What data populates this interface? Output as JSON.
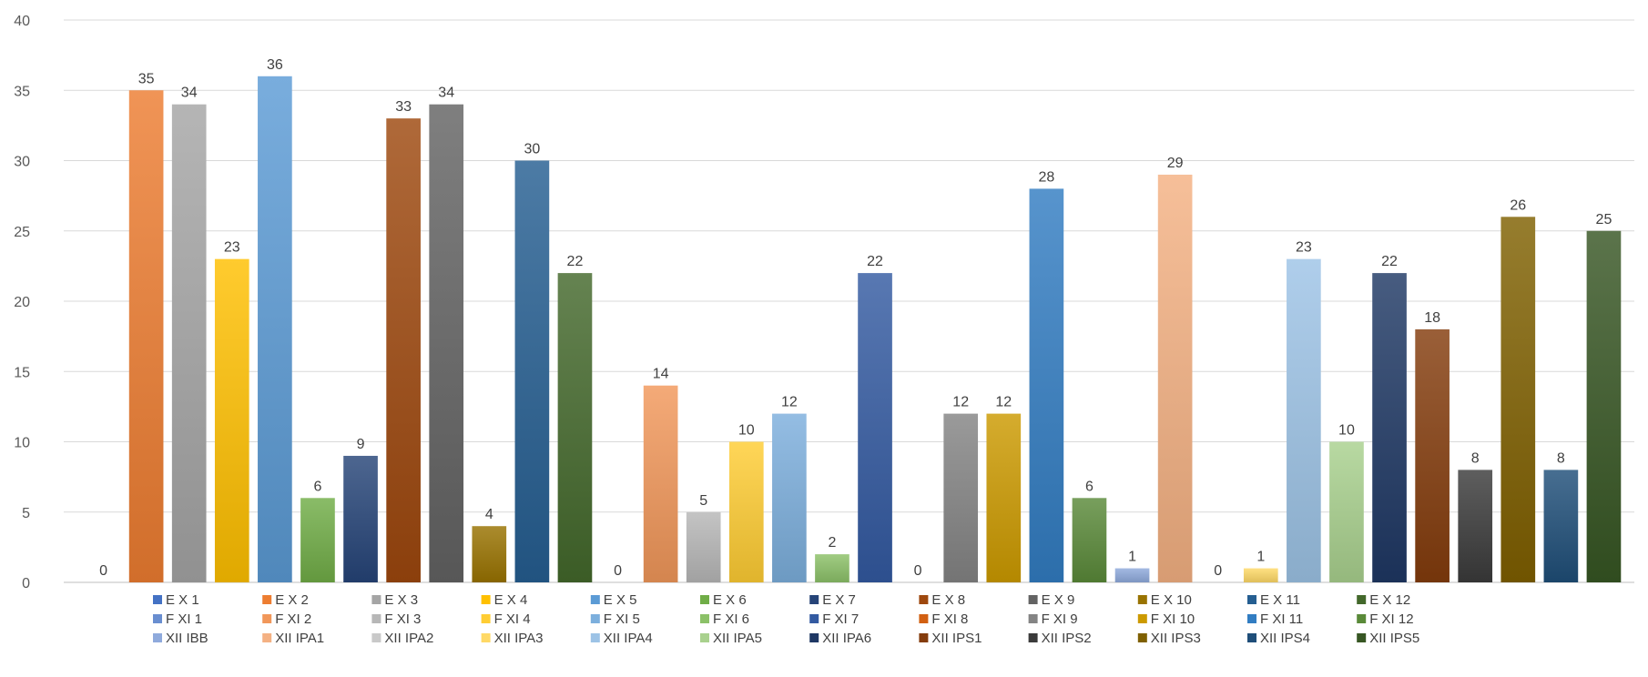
{
  "chart_data": {
    "type": "bar",
    "title": "",
    "xlabel": "",
    "ylabel": "",
    "ylim": [
      0,
      40
    ],
    "yticks": [
      0,
      5,
      10,
      15,
      20,
      25,
      30,
      35,
      40
    ],
    "grid": true,
    "legend_position": "bottom",
    "bars": [
      {
        "name": "E X 1",
        "value": 0,
        "color": "#4472C4"
      },
      {
        "name": "E X 2",
        "value": 35,
        "color": "#ED7D31"
      },
      {
        "name": "E X 3",
        "value": 34,
        "color": "#A5A5A5"
      },
      {
        "name": "E X 4",
        "value": 23,
        "color": "#FFC000"
      },
      {
        "name": "E X 5",
        "value": 36,
        "color": "#5B9BD5"
      },
      {
        "name": "E X 6",
        "value": 6,
        "color": "#70AD47"
      },
      {
        "name": "E X 7",
        "value": 9,
        "color": "#264478"
      },
      {
        "name": "E X 8",
        "value": 33,
        "color": "#9E480E"
      },
      {
        "name": "E X 9",
        "value": 34,
        "color": "#636363"
      },
      {
        "name": "E X 10",
        "value": 4,
        "color": "#997300"
      },
      {
        "name": "E X 11",
        "value": 30,
        "color": "#255E91"
      },
      {
        "name": "E X 12",
        "value": 22,
        "color": "#43682B"
      },
      {
        "name": "F XI 1",
        "value": 0,
        "color": "#698ED0"
      },
      {
        "name": "F XI 2",
        "value": 14,
        "color": "#F1975A"
      },
      {
        "name": "F XI 3",
        "value": 5,
        "color": "#B7B7B7"
      },
      {
        "name": "F XI 4",
        "value": 10,
        "color": "#FFCD33"
      },
      {
        "name": "F XI 5",
        "value": 12,
        "color": "#7CAFDD"
      },
      {
        "name": "F XI 6",
        "value": 2,
        "color": "#8CC168"
      },
      {
        "name": "F XI 7",
        "value": 22,
        "color": "#335AA1"
      },
      {
        "name": "F XI 8",
        "value": 0,
        "color": "#D26012"
      },
      {
        "name": "F XI 9",
        "value": 12,
        "color": "#848484"
      },
      {
        "name": "F XI 10",
        "value": 12,
        "color": "#CC9A00"
      },
      {
        "name": "F XI 11",
        "value": 28,
        "color": "#327DC2"
      },
      {
        "name": "F XI 12",
        "value": 6,
        "color": "#5A8A39"
      },
      {
        "name": "XII IBB",
        "value": 1,
        "color": "#8FAADC"
      },
      {
        "name": "XII IPA1",
        "value": 29,
        "color": "#F4B183"
      },
      {
        "name": "XII IPA2",
        "value": 0,
        "color": "#C9C9C9"
      },
      {
        "name": "XII IPA3",
        "value": 1,
        "color": "#FFD966"
      },
      {
        "name": "XII IPA4",
        "value": 23,
        "color": "#9DC3E6"
      },
      {
        "name": "XII IPA5",
        "value": 10,
        "color": "#A9D18E"
      },
      {
        "name": "XII IPA6",
        "value": 22,
        "color": "#1F3864"
      },
      {
        "name": "XII IPS1",
        "value": 18,
        "color": "#843C0C"
      },
      {
        "name": "XII IPS2",
        "value": 8,
        "color": "#3B3B3B"
      },
      {
        "name": "XII IPS3",
        "value": 26,
        "color": "#7F6000"
      },
      {
        "name": "XII IPS4",
        "value": 8,
        "color": "#1F4E79"
      },
      {
        "name": "XII IPS5",
        "value": 25,
        "color": "#375623"
      }
    ]
  }
}
